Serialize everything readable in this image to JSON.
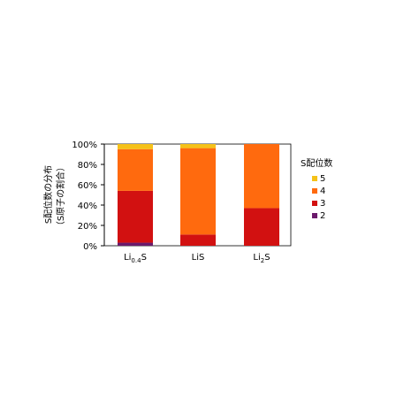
{
  "chart_data": {
    "type": "bar",
    "stacked": true,
    "title": "",
    "xlabel": "",
    "ylabel_line1": "S配位数の分布",
    "ylabel_line2": "（S原子の割合）",
    "ylim": [
      0,
      100
    ],
    "yticks": [
      "0%",
      "20%",
      "40%",
      "60%",
      "80%",
      "100%"
    ],
    "categories": [
      "Li0.4S",
      "LiS",
      "Li2S"
    ],
    "category_labels": [
      {
        "main": "Li",
        "sub": "0.4",
        "tail": "S"
      },
      {
        "main": "LiS",
        "sub": "",
        "tail": ""
      },
      {
        "main": "Li",
        "sub": "2",
        "tail": "S"
      }
    ],
    "legend_title": "S配位数",
    "legend_position": "right",
    "series": [
      {
        "name": "2",
        "color": "#6b1a6b",
        "values": [
          3,
          0,
          0
        ]
      },
      {
        "name": "3",
        "color": "#d21111",
        "values": [
          51,
          11,
          37
        ]
      },
      {
        "name": "4",
        "color": "#ff6a0e",
        "values": [
          41,
          85,
          63
        ]
      },
      {
        "name": "5",
        "color": "#f5c219",
        "values": [
          5,
          4,
          0
        ]
      }
    ],
    "legend_order": [
      "5",
      "4",
      "3",
      "2"
    ]
  }
}
